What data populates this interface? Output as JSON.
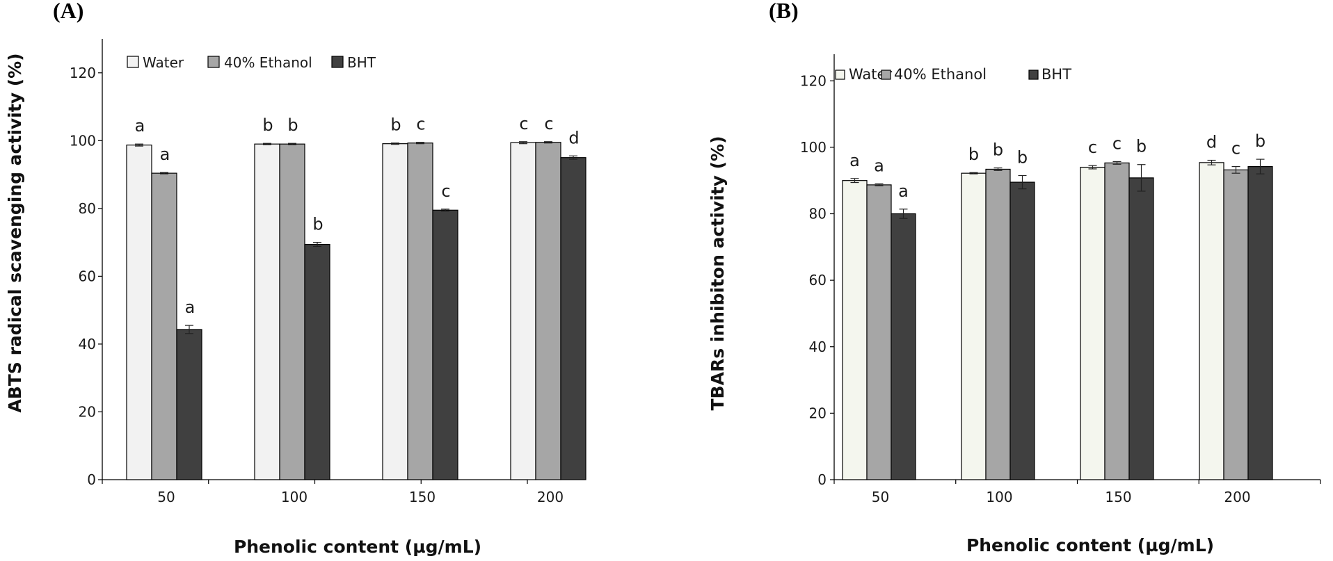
{
  "chart_data": [
    {
      "type": "bar",
      "panel_label": "(A)",
      "categories": [
        "50",
        "100",
        "150",
        "200"
      ],
      "series": [
        {
          "name": "Water",
          "color": "#f2f2f2",
          "values": [
            98.7,
            99.0,
            99.1,
            99.4
          ],
          "errors": [
            0.3,
            0.2,
            0.2,
            0.3
          ],
          "letters": [
            "a",
            "b",
            "b",
            "c"
          ]
        },
        {
          "name": "40% Ethanol",
          "color": "#a6a6a6",
          "values": [
            90.4,
            99.0,
            99.3,
            99.5
          ],
          "errors": [
            0.2,
            0.2,
            0.2,
            0.2
          ],
          "letters": [
            "a",
            "b",
            "c",
            "c"
          ]
        },
        {
          "name": "BHT",
          "color": "#404040",
          "values": [
            44.3,
            69.4,
            79.5,
            95.0
          ],
          "errors": [
            1.2,
            0.6,
            0.3,
            0.5
          ],
          "letters": [
            "a",
            "b",
            "c",
            "d"
          ]
        }
      ],
      "ylabel": "ABTS radical scavenging activity (%)",
      "xlabel": "Phenolic content (µg/mL)",
      "ylim": [
        0,
        130
      ],
      "yticks": [
        "0",
        "20",
        "40",
        "60",
        "80",
        "100",
        "120"
      ],
      "legend_position": "top-left"
    },
    {
      "type": "bar",
      "panel_label": "(B)",
      "categories": [
        "50",
        "100",
        "150",
        "200"
      ],
      "series": [
        {
          "name": "Water",
          "color": "#f4f6ee",
          "values": [
            90.0,
            92.2,
            94.0,
            95.4
          ],
          "errors": [
            0.6,
            0.2,
            0.5,
            0.7
          ],
          "letters": [
            "a",
            "b",
            "c",
            "d"
          ]
        },
        {
          "name": "40% Ethanol",
          "color": "#a6a6a6",
          "values": [
            88.7,
            93.4,
            95.3,
            93.2
          ],
          "errors": [
            0.3,
            0.4,
            0.4,
            1.0
          ],
          "letters": [
            "a",
            "b",
            "c",
            "c"
          ]
        },
        {
          "name": "BHT",
          "color": "#404040",
          "values": [
            80.0,
            89.5,
            90.8,
            94.2
          ],
          "errors": [
            1.4,
            2.0,
            4.0,
            2.2
          ],
          "letters": [
            "a",
            "b",
            "b",
            "b"
          ]
        }
      ],
      "ylabel": "TBARs inhibiton activity (%)",
      "xlabel": "Phenolic content  (µg/mL)",
      "ylim": [
        0,
        128
      ],
      "yticks": [
        "0",
        "20",
        "40",
        "60",
        "80",
        "100",
        "120"
      ],
      "legend_position": "top-left"
    }
  ]
}
